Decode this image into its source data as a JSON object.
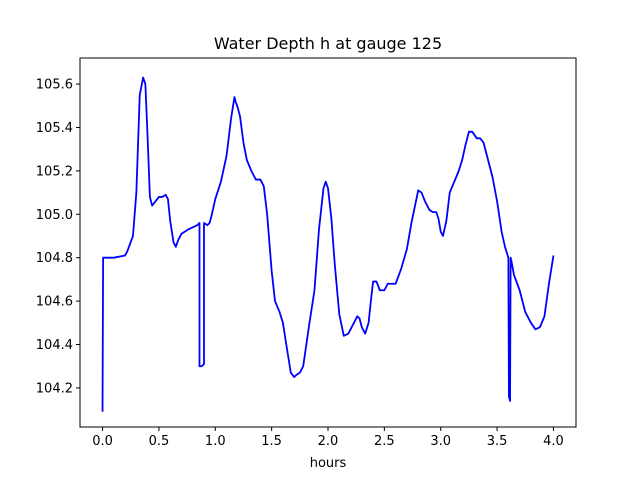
{
  "chart_data": {
    "type": "line",
    "title": "Water Depth h at gauge 125",
    "xlabel": "hours",
    "ylabel": "",
    "xlim": [
      -0.2,
      4.2
    ],
    "ylim": [
      104.02,
      105.72
    ],
    "xticks": [
      0.0,
      0.5,
      1.0,
      1.5,
      2.0,
      2.5,
      3.0,
      3.5,
      4.0
    ],
    "xtick_labels": [
      "0.0",
      "0.5",
      "1.0",
      "1.5",
      "2.0",
      "2.5",
      "3.0",
      "3.5",
      "4.0"
    ],
    "yticks": [
      104.2,
      104.4,
      104.6,
      104.8,
      105.0,
      105.2,
      105.4,
      105.6
    ],
    "ytick_labels": [
      "104.2",
      "104.4",
      "104.6",
      "104.8",
      "105.0",
      "105.2",
      "105.4",
      "105.6"
    ],
    "grid": false,
    "legend": "none",
    "series": [
      {
        "color": "#0000ff",
        "x": [
          0.0,
          0.0,
          0.005,
          0.01,
          0.1,
          0.2,
          0.22,
          0.27,
          0.3,
          0.33,
          0.36,
          0.38,
          0.4,
          0.42,
          0.44,
          0.47,
          0.5,
          0.53,
          0.56,
          0.58,
          0.6,
          0.63,
          0.65,
          0.67,
          0.7,
          0.73,
          0.76,
          0.8,
          0.84,
          0.86,
          0.86,
          0.88,
          0.9,
          0.9,
          0.93,
          0.95,
          0.97,
          1.0,
          1.05,
          1.1,
          1.14,
          1.17,
          1.18,
          1.2,
          1.22,
          1.25,
          1.28,
          1.32,
          1.36,
          1.4,
          1.43,
          1.46,
          1.5,
          1.53,
          1.57,
          1.6,
          1.63,
          1.67,
          1.7,
          1.72,
          1.75,
          1.78,
          1.83,
          1.88,
          1.92,
          1.96,
          1.98,
          2.0,
          2.03,
          2.06,
          2.1,
          2.14,
          2.18,
          2.23,
          2.26,
          2.28,
          2.3,
          2.33,
          2.36,
          2.38,
          2.4,
          2.43,
          2.46,
          2.5,
          2.53,
          2.57,
          2.6,
          2.65,
          2.7,
          2.74,
          2.78,
          2.8,
          2.83,
          2.86,
          2.9,
          2.93,
          2.96,
          2.98,
          3.0,
          3.02,
          3.05,
          3.08,
          3.12,
          3.16,
          3.19,
          3.22,
          3.25,
          3.28,
          3.32,
          3.35,
          3.38,
          3.42,
          3.46,
          3.5,
          3.54,
          3.57,
          3.6,
          3.605,
          3.61,
          3.615,
          3.62,
          3.625,
          3.65,
          3.7,
          3.75,
          3.8,
          3.84,
          3.88,
          3.92,
          3.96,
          4.0
        ],
        "y": [
          104.09,
          104.13,
          104.8,
          104.8,
          104.8,
          104.81,
          104.83,
          104.9,
          105.1,
          105.55,
          105.63,
          105.6,
          105.35,
          105.08,
          105.04,
          105.06,
          105.08,
          105.08,
          105.09,
          105.07,
          104.97,
          104.87,
          104.85,
          104.88,
          104.91,
          104.92,
          104.93,
          104.94,
          104.95,
          104.96,
          104.3,
          104.3,
          104.31,
          104.96,
          104.95,
          104.96,
          105.0,
          105.07,
          105.15,
          105.27,
          105.44,
          105.54,
          105.52,
          105.49,
          105.45,
          105.33,
          105.25,
          105.2,
          105.16,
          105.16,
          105.13,
          105.0,
          104.74,
          104.6,
          104.55,
          104.5,
          104.4,
          104.27,
          104.25,
          104.26,
          104.27,
          104.3,
          104.48,
          104.65,
          104.93,
          105.12,
          105.15,
          105.12,
          104.98,
          104.77,
          104.54,
          104.44,
          104.45,
          104.5,
          104.53,
          104.52,
          104.48,
          104.45,
          104.5,
          104.6,
          104.69,
          104.69,
          104.65,
          104.65,
          104.68,
          104.68,
          104.68,
          104.75,
          104.84,
          104.96,
          105.06,
          105.11,
          105.1,
          105.06,
          105.02,
          105.01,
          105.01,
          104.98,
          104.92,
          104.9,
          104.97,
          105.1,
          105.15,
          105.2,
          105.25,
          105.32,
          105.38,
          105.38,
          105.35,
          105.35,
          105.33,
          105.25,
          105.17,
          105.06,
          104.92,
          104.85,
          104.8,
          104.16,
          104.15,
          104.14,
          104.8,
          104.79,
          104.72,
          104.65,
          104.55,
          104.5,
          104.47,
          104.48,
          104.53,
          104.68,
          104.81
        ]
      }
    ]
  }
}
